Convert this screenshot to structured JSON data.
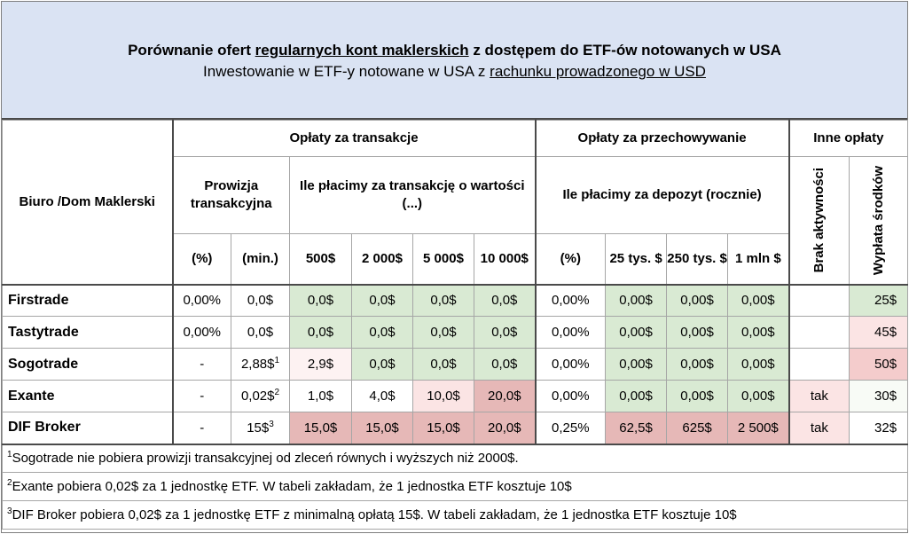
{
  "header": {
    "title_part1": "Porównanie ofert ",
    "title_link": "regularnych kont maklerskich",
    "title_part2": " z dostępem do ETF-ów notowanych w USA",
    "subtitle_part1": "Inwestowanie w ETF-y notowane w USA z ",
    "subtitle_link": "rachunku prowadzonego w USD"
  },
  "table": {
    "col_biuro": "Biuro /Dom Maklerski",
    "group_transactions": "Opłaty za transakcje",
    "group_custody": "Opłaty za przechowywanie",
    "group_other": "Inne opłaty",
    "sub_commission": "Prowizja transakcyjna",
    "sub_transaction_value": "Ile płacimy za transakcję o wartości (...)",
    "sub_deposit": "Ile płacimy za depozyt (rocznie)",
    "col_inactivity": "Brak aktywności",
    "col_withdrawal": "Wypłata środków",
    "units": [
      "(%)",
      "(min.)",
      "500$",
      "2 000$",
      "5 000$",
      "10 000$",
      "(%)",
      "25 tys. $",
      "250 tys. $",
      "1 mln $"
    ],
    "rows": [
      {
        "name": "Firstrade",
        "pct": "0,00%",
        "min": "0,0$",
        "min_sup": "",
        "t500": "0,0$",
        "t2000": "0,0$",
        "t5000": "0,0$",
        "t10000": "0,0$",
        "dep_pct": "0,00%",
        "d25k": "0,00$",
        "d250k": "0,00$",
        "d1m": "0,00$",
        "inactivity": "",
        "withdrawal": "25$"
      },
      {
        "name": "Tastytrade",
        "pct": "0,00%",
        "min": "0,0$",
        "min_sup": "",
        "t500": "0,0$",
        "t2000": "0,0$",
        "t5000": "0,0$",
        "t10000": "0,0$",
        "dep_pct": "0,00%",
        "d25k": "0,00$",
        "d250k": "0,00$",
        "d1m": "0,00$",
        "inactivity": "",
        "withdrawal": "45$"
      },
      {
        "name": "Sogotrade",
        "pct": "-",
        "min": "2,88$",
        "min_sup": "1",
        "t500": "2,9$",
        "t2000": "0,0$",
        "t5000": "0,0$",
        "t10000": "0,0$",
        "dep_pct": "0,00%",
        "d25k": "0,00$",
        "d250k": "0,00$",
        "d1m": "0,00$",
        "inactivity": "",
        "withdrawal": "50$"
      },
      {
        "name": "Exante",
        "pct": "-",
        "min": "0,02$",
        "min_sup": "2",
        "t500": "1,0$",
        "t2000": "4,0$",
        "t5000": "10,0$",
        "t10000": "20,0$",
        "dep_pct": "0,00%",
        "d25k": "0,00$",
        "d250k": "0,00$",
        "d1m": "0,00$",
        "inactivity": "tak",
        "withdrawal": "30$"
      },
      {
        "name": "DIF Broker",
        "pct": "-",
        "min": "15$",
        "min_sup": "3",
        "t500": "15,0$",
        "t2000": "15,0$",
        "t5000": "15,0$",
        "t10000": "20,0$",
        "dep_pct": "0,25%",
        "d25k": "62,5$",
        "d250k": "625$",
        "d1m": "2 500$",
        "inactivity": "tak",
        "withdrawal": "32$"
      }
    ]
  },
  "footnotes": [
    {
      "num": "1",
      "text": "Sogotrade nie pobiera prowizji transakcyjnej od zleceń równych i wyższych niż 2000$."
    },
    {
      "num": "2",
      "text": "Exante pobiera 0,02$ za 1 jednostkę ETF. W tabeli zakładam, że 1 jednostka ETF kosztuje 10$"
    },
    {
      "num": "3",
      "text": "DIF Broker pobiera 0,02$ za 1 jednostkę ETF z minimalną opłatą 15$. W tabeli zakładam, że 1 jednostka ETF kosztuje 10$"
    }
  ],
  "colors": {
    "header_bg": "#dae3f3",
    "green": "#d9ead3",
    "pink": "#f4cccc",
    "light_pink": "#fbe4e4",
    "dark_pink": "#e6b8b7"
  }
}
